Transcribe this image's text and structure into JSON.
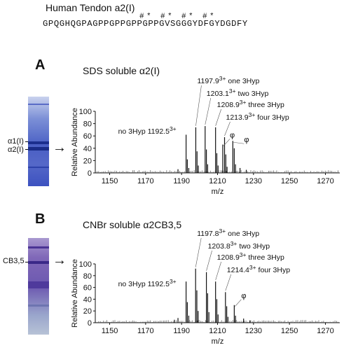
{
  "header": {
    "title": "Human Tendon a2(I)",
    "sequence": "GPQGHQGPAGPPGPPGPPGPPGVSGGGYDFGYDGDFY",
    "hyp_marks": [
      "#",
      "*",
      "#",
      "*",
      "#",
      "*",
      "#",
      "*"
    ]
  },
  "panels": [
    {
      "letter": "A",
      "title": "SDS soluble α2(I)",
      "gel_labels": [
        "α1(I)",
        "α2(I)"
      ],
      "arrow": "→"
    },
    {
      "letter": "B",
      "title": "CNBr soluble α2CB3,5",
      "gel_labels": [
        "CB3,5"
      ],
      "arrow": "→"
    }
  ],
  "chart_data": [
    {
      "type": "bar",
      "xlabel": "m/z",
      "ylabel": "Relative Abundance",
      "xlim": [
        1142,
        1278
      ],
      "ylim": [
        0,
        100
      ],
      "xticks": [
        "1150",
        "1170",
        "1190",
        "1210",
        "1230",
        "1250",
        "1270"
      ],
      "yticks": [
        "0",
        "20",
        "40",
        "60",
        "80",
        "100"
      ],
      "peaks": [
        {
          "x": 1192.5,
          "y": 62
        },
        {
          "x": 1193.2,
          "y": 22
        },
        {
          "x": 1194.0,
          "y": 8
        },
        {
          "x": 1197.9,
          "y": 74
        },
        {
          "x": 1198.6,
          "y": 35
        },
        {
          "x": 1199.3,
          "y": 12
        },
        {
          "x": 1203.1,
          "y": 76
        },
        {
          "x": 1203.8,
          "y": 38
        },
        {
          "x": 1204.5,
          "y": 14
        },
        {
          "x": 1208.9,
          "y": 74
        },
        {
          "x": 1209.6,
          "y": 32
        },
        {
          "x": 1210.3,
          "y": 12
        },
        {
          "x": 1212.9,
          "y": 46
        },
        {
          "x": 1213.9,
          "y": 58
        },
        {
          "x": 1214.6,
          "y": 30
        },
        {
          "x": 1215.3,
          "y": 10
        },
        {
          "x": 1218.5,
          "y": 52
        },
        {
          "x": 1219.3,
          "y": 40
        },
        {
          "x": 1220.0,
          "y": 14
        },
        {
          "x": 1188.0,
          "y": 6
        },
        {
          "x": 1222.5,
          "y": 8
        },
        {
          "x": 1226.0,
          "y": 5
        }
      ],
      "annotations": [
        {
          "text": "1197.9",
          "sup": "3+",
          "after": " one 3Hyp",
          "x": 1197.9
        },
        {
          "text": "1203.1",
          "sup": "3+",
          "after": " two 3Hyp",
          "x": 1203.1
        },
        {
          "text": "1208.9",
          "sup": "3+",
          "after": " three 3Hyp",
          "x": 1208.9
        },
        {
          "text": "1213.9",
          "sup": "3+",
          "after": " four 3Hyp",
          "x": 1213.9
        },
        {
          "text": "no 3Hyp 1192.5",
          "sup": "3+",
          "after": "",
          "x": 1192.5
        }
      ],
      "phi_markers": [
        {
          "text": "φ",
          "x": 1212.9
        },
        {
          "text": "φ",
          "x": 1218.5
        }
      ]
    },
    {
      "type": "bar",
      "xlabel": "m/z",
      "ylabel": "Relative Abundance",
      "xlim": [
        1142,
        1278
      ],
      "ylim": [
        0,
        100
      ],
      "xticks": [
        "1150",
        "1170",
        "1190",
        "1210",
        "1230",
        "1250",
        "1270"
      ],
      "yticks": [
        "0",
        "20",
        "40",
        "60",
        "80",
        "100"
      ],
      "peaks": [
        {
          "x": 1192.5,
          "y": 70
        },
        {
          "x": 1193.2,
          "y": 35
        },
        {
          "x": 1194.0,
          "y": 12
        },
        {
          "x": 1197.8,
          "y": 92
        },
        {
          "x": 1198.5,
          "y": 55
        },
        {
          "x": 1199.2,
          "y": 20
        },
        {
          "x": 1203.8,
          "y": 86
        },
        {
          "x": 1204.5,
          "y": 50
        },
        {
          "x": 1205.2,
          "y": 18
        },
        {
          "x": 1208.9,
          "y": 70
        },
        {
          "x": 1209.6,
          "y": 40
        },
        {
          "x": 1210.3,
          "y": 14
        },
        {
          "x": 1214.4,
          "y": 52
        },
        {
          "x": 1215.1,
          "y": 28
        },
        {
          "x": 1215.8,
          "y": 10
        },
        {
          "x": 1219.3,
          "y": 30
        },
        {
          "x": 1220.0,
          "y": 12
        },
        {
          "x": 1188.0,
          "y": 8
        },
        {
          "x": 1186.0,
          "y": 5
        },
        {
          "x": 1224.5,
          "y": 7
        },
        {
          "x": 1228.0,
          "y": 4
        }
      ],
      "annotations": [
        {
          "text": "1197.8",
          "sup": "3+",
          "after": " one 3Hyp",
          "x": 1197.8
        },
        {
          "text": "1203.8",
          "sup": "3+",
          "after": " two 3Hyp",
          "x": 1203.8
        },
        {
          "text": "1208.9",
          "sup": "3+",
          "after": " three 3Hyp",
          "x": 1208.9
        },
        {
          "text": "1214.4",
          "sup": "3+",
          "after": " four 3Hyp",
          "x": 1214.4
        },
        {
          "text": "no 3Hyp 1192.5",
          "sup": "3+",
          "after": "",
          "x": 1192.5
        }
      ],
      "phi_markers": [
        {
          "text": "φ",
          "x": 1219.3
        }
      ]
    }
  ]
}
